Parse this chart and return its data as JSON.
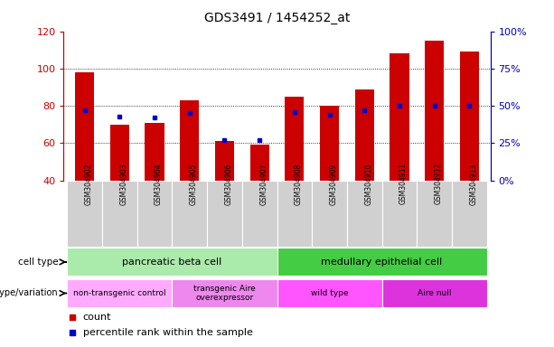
{
  "title": "GDS3491 / 1454252_at",
  "samples": [
    "GSM304902",
    "GSM304903",
    "GSM304904",
    "GSM304905",
    "GSM304906",
    "GSM304907",
    "GSM304908",
    "GSM304909",
    "GSM304910",
    "GSM304911",
    "GSM304912",
    "GSM304913"
  ],
  "counts": [
    98,
    70,
    71,
    83,
    61,
    59,
    85,
    80,
    89,
    108,
    115,
    109
  ],
  "percentile_ranks": [
    47,
    43,
    42,
    45,
    27,
    27,
    46,
    44,
    47,
    50,
    50,
    50
  ],
  "ylim_left": [
    40,
    120
  ],
  "ylim_right": [
    0,
    100
  ],
  "yticks_left": [
    40,
    60,
    80,
    100,
    120
  ],
  "yticks_right": [
    0,
    25,
    50,
    75,
    100
  ],
  "ytick_labels_right": [
    "0%",
    "25%",
    "50%",
    "75%",
    "100%"
  ],
  "bar_color": "#cc0000",
  "dot_color": "#0000cc",
  "bg_color": "#ffffff",
  "xticklabel_bg": "#d0d0d0",
  "cell_type_groups": [
    {
      "label": "pancreatic beta cell",
      "start": 0,
      "end": 6,
      "color": "#aaeaaa"
    },
    {
      "label": "medullary epithelial cell",
      "start": 6,
      "end": 12,
      "color": "#44cc44"
    }
  ],
  "genotype_groups": [
    {
      "label": "non-transgenic control",
      "start": 0,
      "end": 3,
      "color": "#ffaaff"
    },
    {
      "label": "transgenic Aire\noverexpressor",
      "start": 3,
      "end": 6,
      "color": "#ee88ee"
    },
    {
      "label": "wild type",
      "start": 6,
      "end": 9,
      "color": "#ff55ff"
    },
    {
      "label": "Aire null",
      "start": 9,
      "end": 12,
      "color": "#dd33dd"
    }
  ],
  "tick_color_left": "#cc0000",
  "tick_color_right": "#0000bb"
}
